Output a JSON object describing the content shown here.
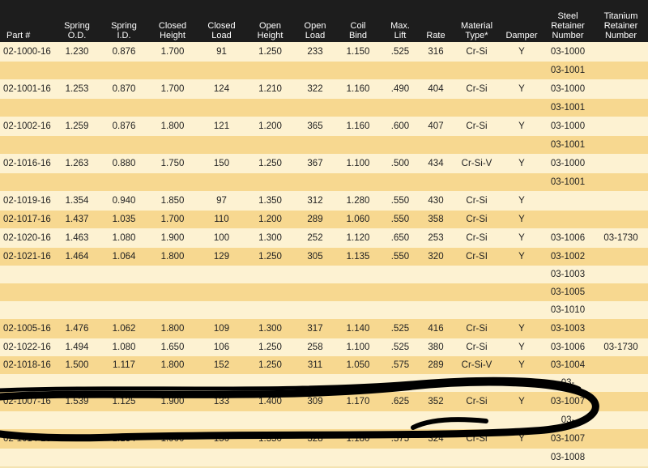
{
  "table": {
    "headers": [
      [
        "Part #"
      ],
      [
        "Spring",
        "O.D."
      ],
      [
        "Spring",
        "I.D."
      ],
      [
        "Closed",
        "Height"
      ],
      [
        "Closed",
        "Load"
      ],
      [
        "Open",
        "Height"
      ],
      [
        "Open",
        "Load"
      ],
      [
        "Coil",
        "Bind"
      ],
      [
        "Max.",
        "Lift"
      ],
      [
        "Rate"
      ],
      [
        "Material",
        "Type*"
      ],
      [
        "Damper"
      ],
      [
        "Steel",
        "Retainer",
        "Number"
      ],
      [
        "Titanium",
        "Retainer",
        "Number"
      ]
    ],
    "rows": [
      [
        "02-1000-16",
        "1.230",
        "0.876",
        "1.700",
        "91",
        "1.250",
        "233",
        "1.150",
        ".525",
        "316",
        "Cr-Si",
        "Y",
        "03-1000",
        ""
      ],
      [
        "",
        "",
        "",
        "",
        "",
        "",
        "",
        "",
        "",
        "",
        "",
        "",
        "03-1001",
        ""
      ],
      [
        "02-1001-16",
        "1.253",
        "0.870",
        "1.700",
        "124",
        "1.210",
        "322",
        "1.160",
        ".490",
        "404",
        "Cr-Si",
        "Y",
        "03-1000",
        ""
      ],
      [
        "",
        "",
        "",
        "",
        "",
        "",
        "",
        "",
        "",
        "",
        "",
        "",
        "03-1001",
        ""
      ],
      [
        "02-1002-16",
        "1.259",
        "0.876",
        "1.800",
        "121",
        "1.200",
        "365",
        "1.160",
        ".600",
        "407",
        "Cr-Si",
        "Y",
        "03-1000",
        ""
      ],
      [
        "",
        "",
        "",
        "",
        "",
        "",
        "",
        "",
        "",
        "",
        "",
        "",
        "03-1001",
        ""
      ],
      [
        "02-1016-16",
        "1.263",
        "0.880",
        "1.750",
        "150",
        "1.250",
        "367",
        "1.100",
        ".500",
        "434",
        "Cr-Si-V",
        "Y",
        "03-1000",
        ""
      ],
      [
        "",
        "",
        "",
        "",
        "",
        "",
        "",
        "",
        "",
        "",
        "",
        "",
        "03-1001",
        ""
      ],
      [
        "02-1019-16",
        "1.354",
        "0.940",
        "1.850",
        "97",
        "1.350",
        "312",
        "1.280",
        ".550",
        "430",
        "Cr-Si",
        "Y",
        "",
        ""
      ],
      [
        "02-1017-16",
        "1.437",
        "1.035",
        "1.700",
        "110",
        "1.200",
        "289",
        "1.060",
        ".550",
        "358",
        "Cr-Si",
        "Y",
        "",
        ""
      ],
      [
        "02-1020-16",
        "1.463",
        "1.080",
        "1.900",
        "100",
        "1.300",
        "252",
        "1.120",
        ".650",
        "253",
        "Cr-Si",
        "Y",
        "03-1006",
        "03-1730"
      ],
      [
        "02-1021-16",
        "1.464",
        "1.064",
        "1.800",
        "129",
        "1.250",
        "305",
        "1.135",
        ".550",
        "320",
        "Cr-SI",
        "Y",
        "03-1002",
        ""
      ],
      [
        "",
        "",
        "",
        "",
        "",
        "",
        "",
        "",
        "",
        "",
        "",
        "",
        "03-1003",
        ""
      ],
      [
        "",
        "",
        "",
        "",
        "",
        "",
        "",
        "",
        "",
        "",
        "",
        "",
        "03-1005",
        ""
      ],
      [
        "",
        "",
        "",
        "",
        "",
        "",
        "",
        "",
        "",
        "",
        "",
        "",
        "03-1010",
        ""
      ],
      [
        "02-1005-16",
        "1.476",
        "1.062",
        "1.800",
        "109",
        "1.300",
        "317",
        "1.140",
        ".525",
        "416",
        "Cr-Si",
        "Y",
        "03-1003",
        ""
      ],
      [
        "02-1022-16",
        "1.494",
        "1.080",
        "1.650",
        "106",
        "1.250",
        "258",
        "1.100",
        ".525",
        "380",
        "Cr-Si",
        "Y",
        "03-1006",
        "03-1730"
      ],
      [
        "02-1018-16",
        "1.500",
        "1.117",
        "1.800",
        "152",
        "1.250",
        "311",
        "1.050",
        ".575",
        "289",
        "Cr-Si-V",
        "Y",
        "03-1004",
        ""
      ],
      [
        "",
        "",
        "",
        "",
        "",
        "",
        "",
        "",
        "",
        "",
        "",
        "",
        "03-",
        ""
      ],
      [
        "02-1007-16",
        "1.539",
        "1.125",
        "1.900",
        "133",
        "1.400",
        "309",
        "1.170",
        ".625",
        "352",
        "Cr-Si",
        "Y",
        "03-1007",
        ""
      ],
      [
        "",
        "",
        "",
        "",
        "",
        "",
        "",
        "",
        "",
        "",
        "",
        "",
        "03-",
        ""
      ],
      [
        "02-1014-16",
        "1.548",
        "1.134",
        "1.900",
        "150",
        "1.350",
        "328",
        "1.180",
        ".575",
        "324",
        "Cr-Si",
        "Y",
        "03-1007",
        ""
      ],
      [
        "",
        "",
        "",
        "",
        "",
        "",
        "",
        "",
        "",
        "",
        "",
        "",
        "03-1008",
        ""
      ]
    ]
  },
  "colors": {
    "header_bg": "#1d1d1d",
    "row_light": "#fdf2d2",
    "row_dark": "#f7d890",
    "ink": "#000000"
  }
}
